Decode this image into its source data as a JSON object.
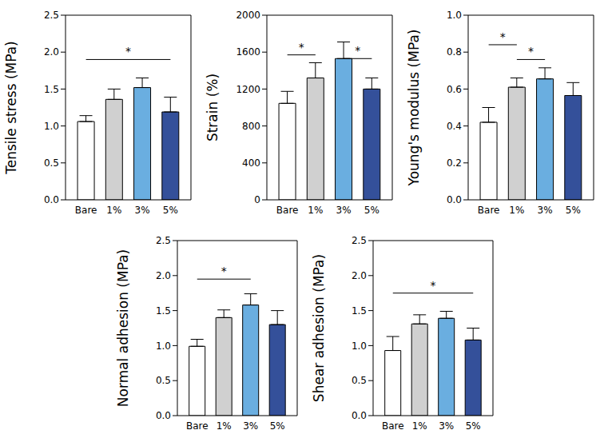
{
  "chart_data": [
    {
      "type": "bar",
      "y_label": "Tensile stress (MPa)",
      "categories": [
        "Bare",
        "1%",
        "3%",
        "5%"
      ],
      "values": [
        1.06,
        1.36,
        1.52,
        1.19
      ],
      "errors": [
        0.08,
        0.14,
        0.13,
        0.2
      ],
      "colors": [
        "#ffffff",
        "#d0d0d0",
        "#6aaee0",
        "#34509a"
      ],
      "ylim": [
        0,
        2.5
      ],
      "yticks": [
        {
          "value": 0,
          "label": "0.0"
        },
        0.5,
        {
          "value": 1,
          "label": "1.0"
        },
        1.5,
        {
          "value": 2,
          "label": "2.0"
        },
        2.5
      ],
      "annotations": [
        {
          "text": "*",
          "from": "Bare",
          "to": "5%",
          "y": 1.9
        }
      ]
    },
    {
      "type": "bar",
      "y_label": "Strain (%)",
      "categories": [
        "Bare",
        "1%",
        "3%",
        "5%"
      ],
      "values": [
        1045,
        1320,
        1530,
        1200
      ],
      "errors": [
        130,
        165,
        180,
        120
      ],
      "colors": [
        "#ffffff",
        "#d0d0d0",
        "#6aaee0",
        "#34509a"
      ],
      "ylim": [
        0,
        2000
      ],
      "yticks": [
        0,
        400,
        800,
        1200,
        1600,
        2000
      ],
      "annotations": [
        {
          "text": "*",
          "from": "Bare",
          "to": "1%",
          "y": 1570
        },
        {
          "text": "*",
          "from": "3%",
          "to": "5%",
          "y": 1530
        }
      ]
    },
    {
      "type": "bar",
      "y_label": "Young's modulus (MPa)",
      "categories": [
        "Bare",
        "1%",
        "3%",
        "5%"
      ],
      "values": [
        0.42,
        0.61,
        0.655,
        0.565
      ],
      "errors": [
        0.08,
        0.05,
        0.06,
        0.07
      ],
      "colors": [
        "#ffffff",
        "#d0d0d0",
        "#6aaee0",
        "#34509a"
      ],
      "ylim": [
        0,
        1
      ],
      "yticks": [
        {
          "value": 0,
          "label": "0.0"
        },
        0.2,
        0.4,
        0.6,
        0.8,
        {
          "value": 1,
          "label": "1.0"
        }
      ],
      "annotations": [
        {
          "text": "*",
          "from": "Bare",
          "to": "1%",
          "y": 0.84
        },
        {
          "text": "*",
          "from": "1%",
          "to": "3%",
          "y": 0.76
        }
      ]
    },
    {
      "type": "bar",
      "y_label": "Normal adhesion (MPa)",
      "categories": [
        "Bare",
        "1%",
        "3%",
        "5%"
      ],
      "values": [
        0.99,
        1.4,
        1.58,
        1.3
      ],
      "errors": [
        0.1,
        0.11,
        0.16,
        0.2
      ],
      "colors": [
        "#ffffff",
        "#d0d0d0",
        "#6aaee0",
        "#34509a"
      ],
      "ylim": [
        0,
        2.5
      ],
      "yticks": [
        {
          "value": 0,
          "label": "0.0"
        },
        0.5,
        {
          "value": 1,
          "label": "1.0"
        },
        1.5,
        {
          "value": 2,
          "label": "2.0"
        },
        2.5
      ],
      "annotations": [
        {
          "text": "*",
          "from": "Bare",
          "to": "3%",
          "y": 1.95
        }
      ]
    },
    {
      "type": "bar",
      "y_label": "Shear adhesion (MPa)",
      "categories": [
        "Bare",
        "1%",
        "3%",
        "5%"
      ],
      "values": [
        0.93,
        1.31,
        1.39,
        1.08
      ],
      "errors": [
        0.2,
        0.13,
        0.1,
        0.17
      ],
      "colors": [
        "#ffffff",
        "#d0d0d0",
        "#6aaee0",
        "#34509a"
      ],
      "ylim": [
        0,
        2.5
      ],
      "yticks": [
        {
          "value": 0,
          "label": "0.0"
        },
        0.5,
        {
          "value": 1,
          "label": "1.0"
        },
        1.5,
        {
          "value": 2,
          "label": "2.0"
        },
        2.5
      ],
      "annotations": [
        {
          "text": "*",
          "from": "Bare",
          "to": "5%",
          "y": 1.75
        }
      ]
    }
  ]
}
